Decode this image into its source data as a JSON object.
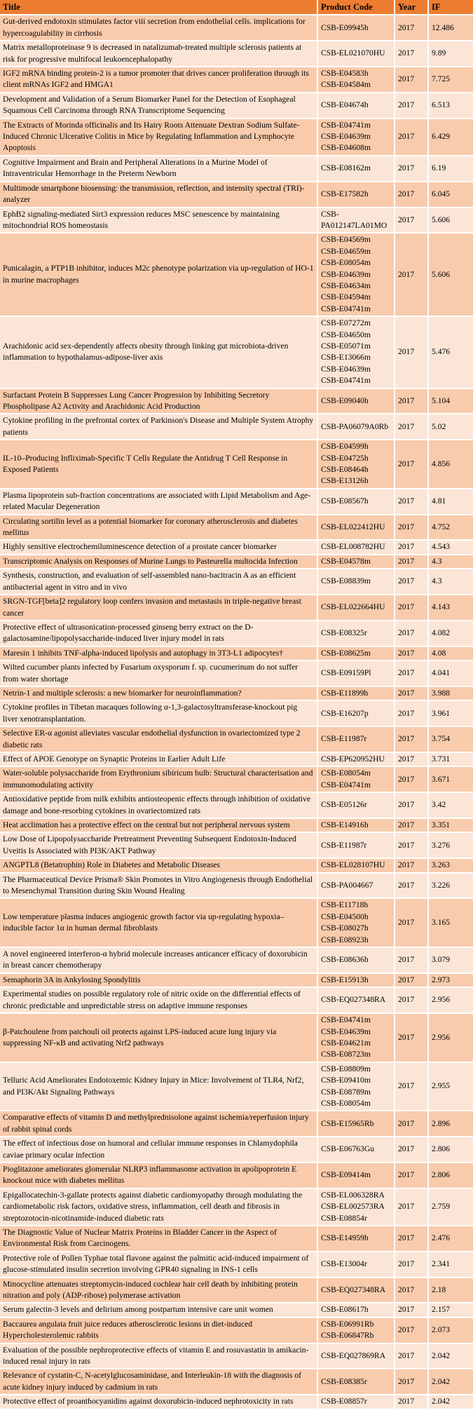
{
  "colors": {
    "header_bg": "#ED7D31",
    "row_dark": "#F8CBAC",
    "row_light": "#FBE5D6",
    "grid": "#FFFFFF",
    "text": "#000000"
  },
  "table": {
    "columns": [
      "Title",
      "Product Code",
      "Year",
      "IF"
    ],
    "rows": [
      {
        "title": "Gut-derived endotoxin stimulates factor viii secretion from endothelial cells. implications for hypercoagulability in cirrhosis",
        "codes": [
          "CSB-E09945h"
        ],
        "year": "2017",
        "if": "12.486"
      },
      {
        "title": "Matrix metalloproteinase 9 is decreased in natalizumab-treated multiple sclerosis patients at risk for progressive multifocal leukoencephalopathy",
        "codes": [
          "CSB-EL021070HU"
        ],
        "year": "2017",
        "if": "9.89"
      },
      {
        "title": "IGF2 mRNA binding protein-2 is a tumor promoter that drives cancer proliferation through its client mRNAs IGF2 and HMGA1",
        "codes": [
          "CSB-E04583h",
          "CSB-E04584m"
        ],
        "year": "2017",
        "if": "7.725"
      },
      {
        "title": "Development and Validation of a Serum Biomarker Panel for the Detection of Esophageal Squamous Cell Carcinoma through RNA Transcriptome Sequencing",
        "codes": [
          "CSB-E04674h"
        ],
        "year": "2017",
        "if": "6.513"
      },
      {
        "title": "The Extracts of Morinda officinalis and Its Hairy Roots Attenuate Dextran Sodium Sulfate-Induced Chronic Ulcerative Colitis in Mice by Regulating Inflammation and Lymphocyte Apoptosis",
        "codes": [
          "CSB-E04741m",
          "CSB-E04639m",
          "CSB-E04608m"
        ],
        "year": "2017",
        "if": "6.429"
      },
      {
        "title": "Cognitive Impairment and Brain and Peripheral Alterations in a Murine Model of Intraventricular Hemorrhage in the Preterm Newborn",
        "codes": [
          "CSB-E08162m"
        ],
        "year": "2017",
        "if": "6.19"
      },
      {
        "title": "Multimode smartphone biosensing: the transmission, reflection, and intensity spectral (TRI)-analyzer",
        "codes": [
          "CSB-E17582h"
        ],
        "year": "2017",
        "if": "6.045"
      },
      {
        "title": "EphB2 signaling-mediated Sirt3 expression reduces MSC senescence by maintaining mitochondrial ROS homeostasis",
        "codes": [
          "CSB-PA012147LA01MO"
        ],
        "year": "2017",
        "if": "5.606"
      },
      {
        "title": "Punicalagin, a PTP1B inhibitor, induces M2c phenotype polarization via up-regulation of HO-1 in murine macrophages",
        "codes": [
          "CSB-E04569m",
          "CSB-E04659m",
          "CSB-E08054m",
          "CSB-E04639m",
          "CSB-E04634m",
          "CSB-E04594m",
          "CSB-E04741m"
        ],
        "year": "2017",
        "if": "5.606"
      },
      {
        "title": "Arachidonic acid sex-dependently affects obesity through linking gut microbiota-driven inflammation to hypothalamus-adipose-liver axis",
        "codes": [
          "CSB-E07272m",
          "CSB-E04650m",
          "CSB-E05071m",
          "CSB-E13066m",
          "CSB-E04639m",
          "CSB-E04741m"
        ],
        "year": "2017",
        "if": "5.476"
      },
      {
        "title": "Surfactant Protein B Suppresses Lung Cancer Progression by Inhibiting Secretory Phospholipase A2 Activity and Arachidonic Acid Production",
        "codes": [
          "CSB-E09040h"
        ],
        "year": "2017",
        "if": "5.104"
      },
      {
        "title": "Cytokine profiling in the prefrontal cortex of Parkinson's Disease and Multiple System Atrophy patients",
        "codes": [
          "CSB-PA06079A0Rb"
        ],
        "year": "2017",
        "if": "5.02"
      },
      {
        "title": "IL-10–Producing Infliximab-Specific T Cells Regulate the Antidrug T Cell Response in Exposed Patients",
        "codes": [
          "CSB-E04599h",
          "CSB-E04725h",
          "CSB-E08464h",
          "CSB-E13126h"
        ],
        "year": "2017",
        "if": "4.856"
      },
      {
        "title": "Plasma lipoprotein sub-fraction concentrations are associated with Lipid Metabolism and Age-related Macular Degeneration",
        "codes": [
          "CSB-E08567h"
        ],
        "year": "2017",
        "if": "4.81"
      },
      {
        "title": "Circulating sortilin level as a potential biomarker for coronary atherosclerosis and diabetes mellitus",
        "codes": [
          "CSB-EL022412HU"
        ],
        "year": "2017",
        "if": "4.752"
      },
      {
        "title": "Highly sensitive electrochemiluminescence detection of a prostate cancer biomarker",
        "codes": [
          "CSB-EL008782HU"
        ],
        "year": "2017",
        "if": "4.543"
      },
      {
        "title": "Transcriptomic Analysis on Responses of Murine Lungs to Pasteurella multocida Infection",
        "codes": [
          "CSB-E04578m"
        ],
        "year": "2017",
        "if": "4.3"
      },
      {
        "title": "Synthesis, construction, and evaluation of self-assembled nano-bacitracin A as an efficient antibacterial agent in vitro and in vivo",
        "codes": [
          "CSB-E08839m"
        ],
        "year": "2017",
        "if": "4.3"
      },
      {
        "title": "SRGN-TGF[beta]2 regulatory loop confers invasion and metastasis in triple-negative breast cancer",
        "codes": [
          "CSB-EL022664HU"
        ],
        "year": "2017",
        "if": "4.143"
      },
      {
        "title": "Protective effect of ultrasonication-processed ginseng berry extract on the D-galactosamine/lipopolysaccharide-induced liver injury model in rats",
        "codes": [
          "CSB-E08325r"
        ],
        "year": "2017",
        "if": "4.082"
      },
      {
        "title": "Maresin 1 inhibits TNF-alpha-induced lipolysis and autophagy in 3T3-L1 adipocytes†",
        "codes": [
          "CSB-E08625m"
        ],
        "year": "2017",
        "if": "4.08"
      },
      {
        "title": "Wilted cucumber plants infected by Fusarium oxysporum f. sp. cucumerinum do not suffer from water shortage",
        "codes": [
          "CSB-E09159Pl"
        ],
        "year": "2017",
        "if": "4.041"
      },
      {
        "title": "Netrin-1 and multiple sclerosis: a new biomarker for neuroinflammation?",
        "codes": [
          "CSB-E11899h"
        ],
        "year": "2017",
        "if": "3.988"
      },
      {
        "title": "Cytokine profiles in Tibetan macaques following α-1,3-galactosyltransferase-knockout pig liver xenotransplantation.",
        "codes": [
          "CSB-E16207p"
        ],
        "year": "2017",
        "if": "3.961"
      },
      {
        "title": "Selective ER-α agonist alleviates vascular endothelial dysfunction in ovariectomized type 2 diabetic rats",
        "codes": [
          "CSB-E11987r"
        ],
        "year": "2017",
        "if": "3.754"
      },
      {
        "title": "Effect of APOE Genotype on Synaptic Proteins in Earlier Adult Life",
        "codes": [
          "CSB-EP620952HU"
        ],
        "year": "2017",
        "if": "3.731"
      },
      {
        "title": "Water-soluble polysaccharide from Erythronium sibiricum bulb: Structural characterisation and immunomodulating activity",
        "codes": [
          "CSB-E08054m",
          "CSB-E04741m"
        ],
        "year": "2017",
        "if": "3.671"
      },
      {
        "title": "Antioxidative peptide from milk exhibits antiosteopenic effects through inhibition of oxidative damage and bone-resorbing cytokines in ovariectomized rats",
        "codes": [
          "CSB-E05126r"
        ],
        "year": "2017",
        "if": "3.42"
      },
      {
        "title": "Heat acclimation has a protective effect on the central but not peripheral nervous system",
        "codes": [
          "CSB-E14916h"
        ],
        "year": "2017",
        "if": "3.351"
      },
      {
        "title": "Low Dose of Lipopolysaccharide Pretreatment Preventing Subsequent Endotoxin-Induced Uveitis Is Associated with PI3K/AKT Pathway",
        "codes": [
          "CSB-E11987r"
        ],
        "year": "2017",
        "if": "3.276"
      },
      {
        "title": "ANGPTL8 (Betatrophin) Role in Diabetes and Metabolic Diseases",
        "codes": [
          "CSB-EL028107HU"
        ],
        "year": "2017",
        "if": "3.263"
      },
      {
        "title": "The Pharmaceutical Device Prisma® Skin Promotes in Vitro Angiogenesis through Endothelial to Mesenchymal Transition during Skin Wound Healing",
        "codes": [
          "CSB-PA004667"
        ],
        "year": "2017",
        "if": "3.226"
      },
      {
        "title": "Low temperature plasma induces angiogenic growth factor via up-regulating hypoxia–inducible factor 1α in human dermal fibroblasts",
        "codes": [
          "CSB-E11718h",
          "CSB-E04500h",
          "CSB-E08027h",
          "CSB-E08923h"
        ],
        "year": "2017",
        "if": "3.165"
      },
      {
        "title": "A novel engineered interferon-α hybrid molecule increases anticancer efficacy of doxorubicin in breast cancer chemotherapy",
        "codes": [
          "CSB-E08636h"
        ],
        "year": "2017",
        "if": "3.079"
      },
      {
        "title": "Semaphorin 3A in Ankylosing Spondylitis",
        "codes": [
          "CSB-E15913h"
        ],
        "year": "2017",
        "if": "2.973"
      },
      {
        "title": "Experimental studies on possible regulatory role of nitric oxide on the differential effects of chronic predictable and unpredictable stress on adaptive immune responses",
        "codes": [
          "CSB-EQ027348RA"
        ],
        "year": "2017",
        "if": "2.956"
      },
      {
        "title": "β-Patchoulene from patchouli oil protects against LPS-induced acute lung injury via suppressing NF-κB and activating Nrf2 pathways",
        "codes": [
          "CSB-E04741m",
          "CSB-E04639m",
          "CSB-E04621m",
          "CSB-E08723m"
        ],
        "year": "2017",
        "if": "2.956"
      },
      {
        "title": "Telluric Acid Ameliorates Endotoxemic Kidney Injury in Mice: Involvement of TLR4, Nrf2, and PI3K/Akt Signaling Pathways",
        "codes": [
          "CSB-E08809m",
          "CSB-E09410m",
          "CSB-E08789m",
          "CSB-E08054m"
        ],
        "year": "2017",
        "if": "2.955"
      },
      {
        "title": "Comparative effects of vitamin D and methylprednisolone against ischemia/reperfusion injury of rabbit spinal cords",
        "codes": [
          "CSB-E15965Rb"
        ],
        "year": "2017",
        "if": "2.896"
      },
      {
        "title": "The effect of infectious dose on humoral and cellular immune responses in Chlamydophila caviae primary ocular infection",
        "codes": [
          "CSB-E06763Gu"
        ],
        "year": "2017",
        "if": "2.806"
      },
      {
        "title": "Pioglitazone ameliorates glomerular NLRP3 inflammasome activation in apolipoprotein E knockout mice with diabetes mellitus",
        "codes": [
          "CSB-E09414m"
        ],
        "year": "2017",
        "if": "2.806"
      },
      {
        "title": "Epigallocatechin-3-gallate protects against diabetic cardiomyopathy through modulating the cardiometabolic risk factors, oxidative stress, inflammation, cell death and fibrosis in streptozotocin-nicotinamide-induced diabetic rats",
        "codes": [
          "CSB-EL006328RA",
          "CSB-EL002573RA",
          "CSB-E08854r"
        ],
        "year": "2017",
        "if": "2.759"
      },
      {
        "title": "The Diagnostic Value of Nuclear Matrix Proteins in Bladder Cancer in the Aspect of Environmental Risk from Carcinogens.",
        "codes": [
          "CSB-E14959h"
        ],
        "year": "2017",
        "if": "2.476"
      },
      {
        "title": "Protective role of Pollen Typhae total flavone against the palmitic acid-induced impairment of glucose-stimulated insulin secretion involving GPR40 signaling in INS-1 cells",
        "codes": [
          "CSB-E13004r"
        ],
        "year": "2017",
        "if": "2.341"
      },
      {
        "title": "Minocycline attenuates streptomycin-induced cochlear hair cell death by inhibiting protein nitration and poly (ADP-ribose) polymerase activation",
        "codes": [
          "CSB-EQ027348RA"
        ],
        "year": "2017",
        "if": "2.18"
      },
      {
        "title": "Serum galectin-3 levels and delirium among postpartum intensive care unit women",
        "codes": [
          "CSB-E08617h"
        ],
        "year": "2017",
        "if": "2.157"
      },
      {
        "title": "Baccaurea angulata fruit juice reduces atherosclerotic lesions in diet-induced Hypercholesterolemic rabbits",
        "codes": [
          "CSB-E06991Rb",
          "CSB-E06847Rb"
        ],
        "year": "2017",
        "if": "2.073"
      },
      {
        "title": "Evaluation of the possible nephroprotective effects of vitamin E and rosuvastatin in amikacin-induced renal injury in rats",
        "codes": [
          "CSB-EQ027869RA"
        ],
        "year": "2017",
        "if": "2.042"
      },
      {
        "title": "Relevance of cystatin-C, N-acetylglucosaminidase, and Interleukin-18 with the diagnosis of acute kidney injury induced by cadmium in rats",
        "codes": [
          "CSB-E08385r"
        ],
        "year": "2017",
        "if": "2.042"
      },
      {
        "title": "Protective effect of proanthocyanidins against doxorubicin-induced nephrotoxicity in rats",
        "codes": [
          "CSB-E08857r"
        ],
        "year": "2017",
        "if": "2.042"
      }
    ]
  }
}
